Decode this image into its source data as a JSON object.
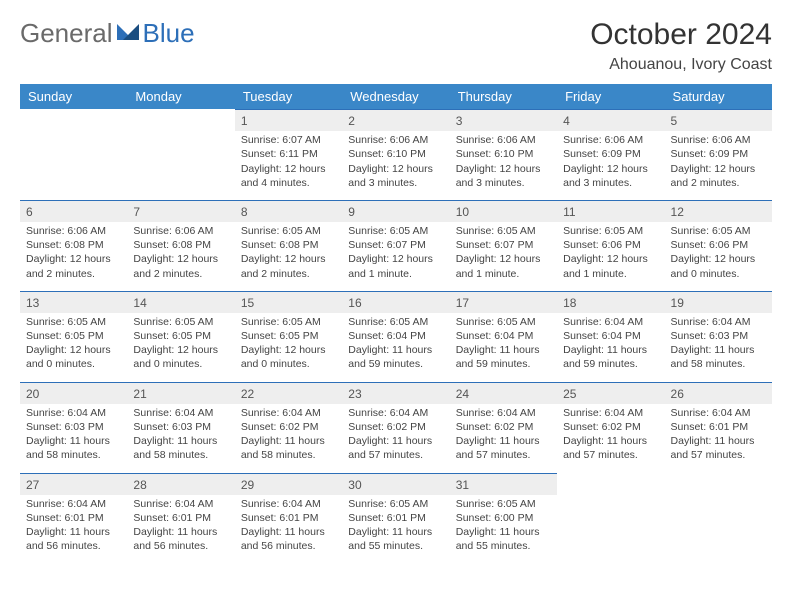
{
  "logo": {
    "text1": "General",
    "text2": "Blue"
  },
  "title": "October 2024",
  "location": "Ahouanou, Ivory Coast",
  "colors": {
    "header_bg": "#3a87c8",
    "header_text": "#ffffff",
    "daynum_bg": "#eeeeee",
    "rule": "#2d6fb8",
    "body_text": "#444444",
    "logo_blue": "#2d6fb8"
  },
  "weekdays": [
    "Sunday",
    "Monday",
    "Tuesday",
    "Wednesday",
    "Thursday",
    "Friday",
    "Saturday"
  ],
  "weeks": [
    [
      null,
      null,
      {
        "n": "1",
        "sr": "6:07 AM",
        "ss": "6:11 PM",
        "dl": "12 hours and 4 minutes."
      },
      {
        "n": "2",
        "sr": "6:06 AM",
        "ss": "6:10 PM",
        "dl": "12 hours and 3 minutes."
      },
      {
        "n": "3",
        "sr": "6:06 AM",
        "ss": "6:10 PM",
        "dl": "12 hours and 3 minutes."
      },
      {
        "n": "4",
        "sr": "6:06 AM",
        "ss": "6:09 PM",
        "dl": "12 hours and 3 minutes."
      },
      {
        "n": "5",
        "sr": "6:06 AM",
        "ss": "6:09 PM",
        "dl": "12 hours and 2 minutes."
      }
    ],
    [
      {
        "n": "6",
        "sr": "6:06 AM",
        "ss": "6:08 PM",
        "dl": "12 hours and 2 minutes."
      },
      {
        "n": "7",
        "sr": "6:06 AM",
        "ss": "6:08 PM",
        "dl": "12 hours and 2 minutes."
      },
      {
        "n": "8",
        "sr": "6:05 AM",
        "ss": "6:08 PM",
        "dl": "12 hours and 2 minutes."
      },
      {
        "n": "9",
        "sr": "6:05 AM",
        "ss": "6:07 PM",
        "dl": "12 hours and 1 minute."
      },
      {
        "n": "10",
        "sr": "6:05 AM",
        "ss": "6:07 PM",
        "dl": "12 hours and 1 minute."
      },
      {
        "n": "11",
        "sr": "6:05 AM",
        "ss": "6:06 PM",
        "dl": "12 hours and 1 minute."
      },
      {
        "n": "12",
        "sr": "6:05 AM",
        "ss": "6:06 PM",
        "dl": "12 hours and 0 minutes."
      }
    ],
    [
      {
        "n": "13",
        "sr": "6:05 AM",
        "ss": "6:05 PM",
        "dl": "12 hours and 0 minutes."
      },
      {
        "n": "14",
        "sr": "6:05 AM",
        "ss": "6:05 PM",
        "dl": "12 hours and 0 minutes."
      },
      {
        "n": "15",
        "sr": "6:05 AM",
        "ss": "6:05 PM",
        "dl": "12 hours and 0 minutes."
      },
      {
        "n": "16",
        "sr": "6:05 AM",
        "ss": "6:04 PM",
        "dl": "11 hours and 59 minutes."
      },
      {
        "n": "17",
        "sr": "6:05 AM",
        "ss": "6:04 PM",
        "dl": "11 hours and 59 minutes."
      },
      {
        "n": "18",
        "sr": "6:04 AM",
        "ss": "6:04 PM",
        "dl": "11 hours and 59 minutes."
      },
      {
        "n": "19",
        "sr": "6:04 AM",
        "ss": "6:03 PM",
        "dl": "11 hours and 58 minutes."
      }
    ],
    [
      {
        "n": "20",
        "sr": "6:04 AM",
        "ss": "6:03 PM",
        "dl": "11 hours and 58 minutes."
      },
      {
        "n": "21",
        "sr": "6:04 AM",
        "ss": "6:03 PM",
        "dl": "11 hours and 58 minutes."
      },
      {
        "n": "22",
        "sr": "6:04 AM",
        "ss": "6:02 PM",
        "dl": "11 hours and 58 minutes."
      },
      {
        "n": "23",
        "sr": "6:04 AM",
        "ss": "6:02 PM",
        "dl": "11 hours and 57 minutes."
      },
      {
        "n": "24",
        "sr": "6:04 AM",
        "ss": "6:02 PM",
        "dl": "11 hours and 57 minutes."
      },
      {
        "n": "25",
        "sr": "6:04 AM",
        "ss": "6:02 PM",
        "dl": "11 hours and 57 minutes."
      },
      {
        "n": "26",
        "sr": "6:04 AM",
        "ss": "6:01 PM",
        "dl": "11 hours and 57 minutes."
      }
    ],
    [
      {
        "n": "27",
        "sr": "6:04 AM",
        "ss": "6:01 PM",
        "dl": "11 hours and 56 minutes."
      },
      {
        "n": "28",
        "sr": "6:04 AM",
        "ss": "6:01 PM",
        "dl": "11 hours and 56 minutes."
      },
      {
        "n": "29",
        "sr": "6:04 AM",
        "ss": "6:01 PM",
        "dl": "11 hours and 56 minutes."
      },
      {
        "n": "30",
        "sr": "6:05 AM",
        "ss": "6:01 PM",
        "dl": "11 hours and 55 minutes."
      },
      {
        "n": "31",
        "sr": "6:05 AM",
        "ss": "6:00 PM",
        "dl": "11 hours and 55 minutes."
      },
      null,
      null
    ]
  ],
  "labels": {
    "sunrise": "Sunrise:",
    "sunset": "Sunset:",
    "daylight": "Daylight:"
  }
}
